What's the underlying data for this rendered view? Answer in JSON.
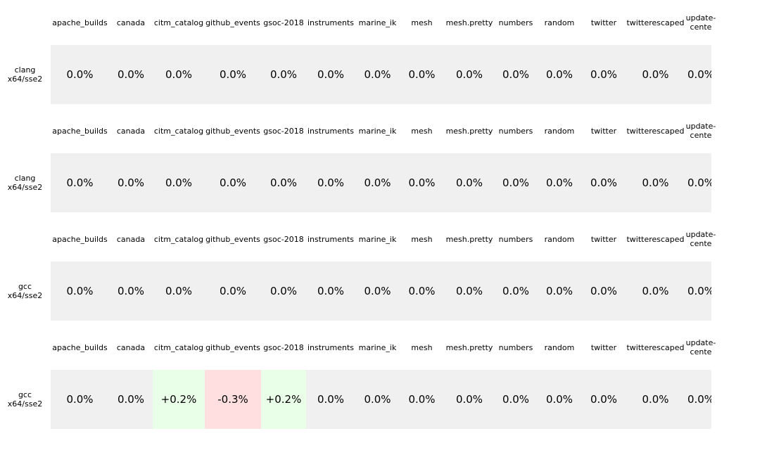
{
  "chart_data": {
    "type": "heatmap",
    "columns": [
      "apache_builds",
      "canada",
      "citm_catalog",
      "github_events",
      "gsoc-2018",
      "instruments",
      "marine_ik",
      "mesh",
      "mesh.pretty",
      "numbers",
      "random",
      "twitter",
      "twitterescaped",
      "update-\ncente"
    ],
    "rows": [
      {
        "label": [
          "clang",
          "x64/sse2"
        ],
        "values": [
          "0.0%",
          "0.0%",
          "0.0%",
          "0.0%",
          "0.0%",
          "0.0%",
          "0.0%",
          "0.0%",
          "0.0%",
          "0.0%",
          "0.0%",
          "0.0%",
          "0.0%",
          "0.0%"
        ]
      },
      {
        "label": [
          "clang",
          "x64/sse2"
        ],
        "values": [
          "0.0%",
          "0.0%",
          "0.0%",
          "0.0%",
          "0.0%",
          "0.0%",
          "0.0%",
          "0.0%",
          "0.0%",
          "0.0%",
          "0.0%",
          "0.0%",
          "0.0%",
          "0.0%"
        ]
      },
      {
        "label": [
          "gcc",
          "x64/sse2"
        ],
        "values": [
          "0.0%",
          "0.0%",
          "0.0%",
          "0.0%",
          "0.0%",
          "0.0%",
          "0.0%",
          "0.0%",
          "0.0%",
          "0.0%",
          "0.0%",
          "0.0%",
          "0.0%",
          "0.0%"
        ]
      },
      {
        "label": [
          "gcc",
          "x64/sse2"
        ],
        "values": [
          "0.0%",
          "0.0%",
          "+0.2%",
          "-0.3%",
          "+0.2%",
          "0.0%",
          "0.0%",
          "0.0%",
          "0.0%",
          "0.0%",
          "0.0%",
          "0.0%",
          "0.0%",
          "0.0%"
        ]
      }
    ],
    "colors": {
      "neutral": "#f0f0f0",
      "positive": "#eaffe8",
      "negative": "#ffdfe0"
    }
  }
}
